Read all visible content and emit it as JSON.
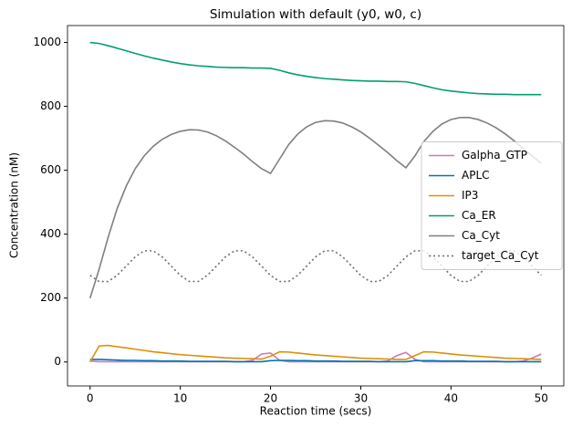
{
  "chart_data": {
    "type": "line",
    "title": "Simulation with default (y0, w0, c)",
    "x_label": "Reaction time (secs)",
    "y_label": "Concentration (nM)",
    "x": [
      0,
      1,
      2,
      3,
      4,
      5,
      6,
      7,
      8,
      9,
      10,
      11,
      12,
      13,
      14,
      15,
      16,
      17,
      18,
      19,
      20,
      21,
      22,
      23,
      24,
      25,
      26,
      27,
      28,
      29,
      30,
      31,
      32,
      33,
      34,
      35,
      36,
      37,
      38,
      39,
      40,
      41,
      42,
      43,
      44,
      45,
      46,
      47,
      48,
      49,
      50
    ],
    "series": [
      {
        "name": "Galpha_GTP",
        "color": "#cc78bc",
        "linestyle": "solid",
        "values": [
          3,
          1,
          1,
          1,
          1,
          1,
          1,
          1,
          1,
          1,
          1,
          1,
          1,
          1,
          1,
          1,
          1,
          1,
          5,
          25,
          28,
          5,
          1,
          1,
          1,
          1,
          1,
          1,
          1,
          1,
          1,
          1,
          1,
          3,
          20,
          30,
          8,
          1,
          1,
          1,
          1,
          1,
          1,
          1,
          1,
          1,
          1,
          1,
          3,
          12,
          25
        ]
      },
      {
        "name": "APLC",
        "color": "#0173b2",
        "linestyle": "solid",
        "values": [
          8,
          8,
          7,
          6,
          5,
          5,
          4,
          4,
          3,
          3,
          3,
          2,
          2,
          2,
          2,
          2,
          1,
          1,
          1,
          1,
          4,
          5,
          5,
          4,
          4,
          3,
          3,
          3,
          2,
          2,
          2,
          2,
          1,
          1,
          1,
          1,
          4,
          4,
          4,
          3,
          3,
          3,
          2,
          2,
          2,
          2,
          1,
          1,
          1,
          1,
          1
        ]
      },
      {
        "name": "IP3",
        "color": "#de8f05",
        "linestyle": "solid",
        "values": [
          0,
          50,
          52,
          48,
          44,
          40,
          36,
          32,
          29,
          26,
          23,
          21,
          19,
          17,
          15,
          13,
          12,
          11,
          10,
          9,
          18,
          32,
          31,
          28,
          25,
          22,
          20,
          18,
          16,
          14,
          12,
          11,
          10,
          9,
          8,
          8,
          20,
          32,
          31,
          28,
          25,
          22,
          20,
          18,
          16,
          14,
          12,
          11,
          10,
          9,
          8
        ]
      },
      {
        "name": "Ca_ER",
        "color": "#029e73",
        "linestyle": "solid",
        "values": [
          1000,
          997,
          990,
          982,
          974,
          966,
          958,
          951,
          945,
          939,
          934,
          930,
          927,
          925,
          923,
          922,
          921,
          921,
          920,
          920,
          919,
          913,
          905,
          899,
          894,
          890,
          887,
          885,
          883,
          881,
          880,
          879,
          879,
          878,
          878,
          877,
          872,
          865,
          858,
          852,
          848,
          845,
          842,
          840,
          839,
          838,
          838,
          837,
          837,
          837,
          837
        ]
      },
      {
        "name": "Ca_Cyt",
        "color": "#7f7f7f",
        "linestyle": "solid",
        "values": [
          200,
          290,
          390,
          480,
          550,
          605,
          645,
          675,
          697,
          712,
          722,
          727,
          726,
          720,
          708,
          692,
          672,
          651,
          627,
          605,
          590,
          635,
          680,
          713,
          736,
          750,
          755,
          754,
          748,
          736,
          720,
          700,
          678,
          655,
          630,
          608,
          645,
          690,
          722,
          745,
          759,
          765,
          765,
          759,
          748,
          733,
          714,
          692,
          668,
          645,
          622
        ]
      },
      {
        "name": "target_Ca_Cyt",
        "color": "#6e6e6e",
        "linestyle": "dotted",
        "values": [
          271,
          252,
          252,
          271,
          300,
          329,
          348,
          348,
          329,
          300,
          271,
          252,
          252,
          271,
          300,
          329,
          348,
          348,
          329,
          300,
          271,
          252,
          252,
          271,
          300,
          329,
          348,
          348,
          329,
          300,
          271,
          252,
          252,
          271,
          300,
          329,
          348,
          348,
          329,
          300,
          271,
          252,
          252,
          271,
          300,
          329,
          348,
          348,
          329,
          300,
          271
        ]
      }
    ],
    "xlim": [
      -2.5,
      52.5
    ],
    "ylim": [
      -75,
      1053
    ],
    "xticks": [
      0,
      10,
      20,
      30,
      40,
      50
    ],
    "yticks": [
      0,
      200,
      400,
      600,
      800,
      1000
    ],
    "grid": false,
    "legend": "center right"
  }
}
